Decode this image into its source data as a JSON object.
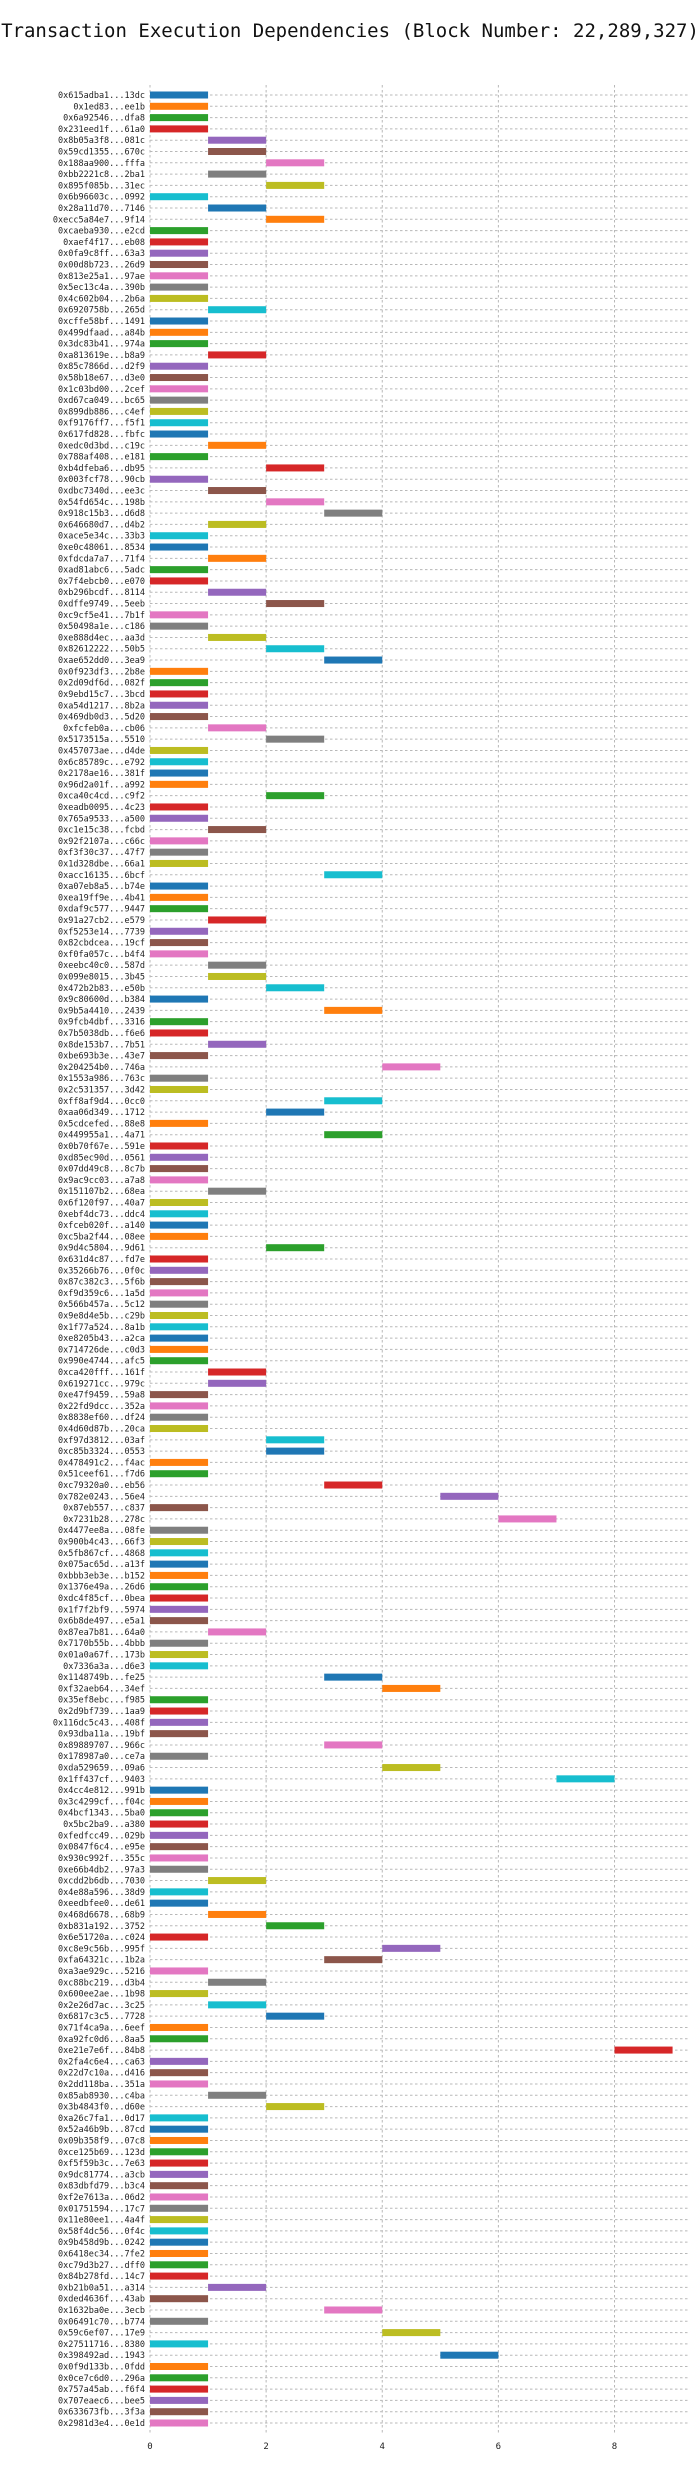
{
  "chart_data": {
    "type": "bar",
    "orientation": "horizontal-segments",
    "title": "Transaction Execution Dependencies (Block Number: 22,289,327)",
    "xlabel": "",
    "ylabel": "",
    "xlim": [
      0,
      9.3
    ],
    "xticks": [
      0,
      2,
      4,
      6,
      8
    ],
    "grid": true,
    "palette": [
      "#1f77b4",
      "#ff7f0e",
      "#2ca02c",
      "#d62728",
      "#9467bd",
      "#8c564b",
      "#e377c2",
      "#7f7f7f",
      "#bcbd22",
      "#17becf"
    ],
    "transactions": [
      [
        "0x615adba1...13dc",
        0
      ],
      [
        "0x1ed83...ee1b",
        0
      ],
      [
        "0x6a92546...dfa8",
        0
      ],
      [
        "0x231eed1f...61a0",
        0
      ],
      [
        "0x8b05a3f8...081c",
        1
      ],
      [
        "0x59cd1355...670c",
        1
      ],
      [
        "0x188aa900...fffa",
        2
      ],
      [
        "0xbb2221c8...2ba1",
        1
      ],
      [
        "0x895f085b...31ec",
        2
      ],
      [
        "0x6b96603c...0992",
        0
      ],
      [
        "0x28a11d70...7146",
        1
      ],
      [
        "0xecc5a84e7...9f14",
        2
      ],
      [
        "0xcaeba930...e2cd",
        0
      ],
      [
        "0xaef4f17...eb08",
        0
      ],
      [
        "0x0fa9c8ff...63a3",
        0
      ],
      [
        "0x00d8b723...26d9",
        0
      ],
      [
        "0x813e25a1...97ae",
        0
      ],
      [
        "0x5ec13c4a...390b",
        0
      ],
      [
        "0x4c602b04...2b6a",
        0
      ],
      [
        "0x6920758b...265d",
        1
      ],
      [
        "0xcffe58bf...1491",
        0
      ],
      [
        "0x499dfaad...a84b",
        0
      ],
      [
        "0x3dc83b41...974a",
        0
      ],
      [
        "0xa813619e...b8a9",
        1
      ],
      [
        "0x85c7866d...d2f9",
        0
      ],
      [
        "0x58b18e67...d3e0",
        0
      ],
      [
        "0x1c03bd00...2cef",
        0
      ],
      [
        "0xd67ca049...bc65",
        0
      ],
      [
        "0x899db886...c4ef",
        0
      ],
      [
        "0xf9176ff7...f5f1",
        0
      ],
      [
        "0x617fd828...fbfc",
        0
      ],
      [
        "0xedc0d3bd...c19c",
        1
      ],
      [
        "0x788af408...e181",
        0
      ],
      [
        "0xb4dfeba6...db95",
        2
      ],
      [
        "0x003fcf78...90cb",
        0
      ],
      [
        "0xdbc7340d...ee3c",
        1
      ],
      [
        "0x54fd654c...198b",
        2
      ],
      [
        "0x918c15b3...d6d8",
        3
      ],
      [
        "0x646680d7...d4b2",
        1
      ],
      [
        "0xace5e34c...33b3",
        0
      ],
      [
        "0xe0c48061...8534",
        0
      ],
      [
        "0xfdcda7a7...71f4",
        1
      ],
      [
        "0xad81abc6...5adc",
        0
      ],
      [
        "0x7f4ebcb0...e070",
        0
      ],
      [
        "0xb296bcdf...8114",
        1
      ],
      [
        "0xdffe9749...5eeb",
        2
      ],
      [
        "0xc9cf5e41...7b1f",
        0
      ],
      [
        "0x50498a1e...c186",
        0
      ],
      [
        "0xe888d4ec...aa3d",
        1
      ],
      [
        "0x82612222...50b5",
        2
      ],
      [
        "0xae652dd0...3ea9",
        3
      ],
      [
        "0x0f923df3...2b8e",
        0
      ],
      [
        "0x2d09df6d...082f",
        0
      ],
      [
        "0x9ebd15c7...3bcd",
        0
      ],
      [
        "0xa54d1217...8b2a",
        0
      ],
      [
        "0x469db0d3...5d20",
        0
      ],
      [
        "0xfcfeb0a...cb06",
        1
      ],
      [
        "0x5173515a...5510",
        2
      ],
      [
        "0x457073ae...d4de",
        0
      ],
      [
        "0x6c85789c...e792",
        0
      ],
      [
        "0x2178ae16...381f",
        0
      ],
      [
        "0x96d2a01f...a992",
        0
      ],
      [
        "0xca40c4cd...c9f2",
        2
      ],
      [
        "0xeadb0095...4c23",
        0
      ],
      [
        "0x765a9533...a500",
        0
      ],
      [
        "0xc1e15c38...fcbd",
        1
      ],
      [
        "0x92f2107a...c66c",
        0
      ],
      [
        "0xf3f30c37...47f7",
        0
      ],
      [
        "0x1d328dbe...66a1",
        0
      ],
      [
        "0xacc16135...6bcf",
        3
      ],
      [
        "0xa07eb8a5...b74e",
        0
      ],
      [
        "0xea19ff9e...4b41",
        0
      ],
      [
        "0xdaf9c577...9447",
        0
      ],
      [
        "0x91a27cb2...e579",
        1
      ],
      [
        "0xf5253e14...7739",
        0
      ],
      [
        "0x82cbdcea...19cf",
        0
      ],
      [
        "0xf0fa057c...b4f4",
        0
      ],
      [
        "0xeebc40c0...587d",
        1
      ],
      [
        "0x099e8015...3b45",
        1
      ],
      [
        "0x472b2b83...e50b",
        2
      ],
      [
        "0x9c80600d...b384",
        0
      ],
      [
        "0x9b5a4410...2439",
        3
      ],
      [
        "0x9fcb4dbf...3316",
        0
      ],
      [
        "0x7b5038db...f6e6",
        0
      ],
      [
        "0x8de153b7...7b51",
        1
      ],
      [
        "0xbe693b3e...43e7",
        0
      ],
      [
        "0x204254b0...746a",
        4
      ],
      [
        "0x1553a986...763c",
        0
      ],
      [
        "0x2c531357...3d42",
        0
      ],
      [
        "0xff8af9d4...0cc0",
        3
      ],
      [
        "0xaa06d349...1712",
        2
      ],
      [
        "0x5cdcefed...88e8",
        0
      ],
      [
        "0x449955a1...4a71",
        3
      ],
      [
        "0x0b70f67e...591e",
        0
      ],
      [
        "0xd85ec90d...0561",
        0
      ],
      [
        "0x07dd49c8...8c7b",
        0
      ],
      [
        "0x9ac9cc03...a7a8",
        0
      ],
      [
        "0x151107b2...68ea",
        1
      ],
      [
        "0x6f120f97...40a7",
        0
      ],
      [
        "0xebf4dc73...ddc4",
        0
      ],
      [
        "0xfceb020f...a140",
        0
      ],
      [
        "0xc5ba2f44...08ee",
        0
      ],
      [
        "0x9d4c5804...9d61",
        2
      ],
      [
        "0x631d4c87...fd7e",
        0
      ],
      [
        "0x35266b76...0f0c",
        0
      ],
      [
        "0x87c382c3...5f6b",
        0
      ],
      [
        "0xf9d359c6...1a5d",
        0
      ],
      [
        "0x566b457a...5c12",
        0
      ],
      [
        "0x9e8d4e5b...c29b",
        0
      ],
      [
        "0x1f77a524...8a1b",
        0
      ],
      [
        "0xe8205b43...a2ca",
        0
      ],
      [
        "0x714726de...c0d3",
        0
      ],
      [
        "0x990e4744...afc5",
        0
      ],
      [
        "0xca420fff...161f",
        1
      ],
      [
        "0x619271cc...979c",
        1
      ],
      [
        "0xe47f9459...59a8",
        0
      ],
      [
        "0x22fd9dcc...352a",
        0
      ],
      [
        "0x8838ef60...df24",
        0
      ],
      [
        "0x4d60d87b...20ca",
        0
      ],
      [
        "0xf97d3812...03af",
        2
      ],
      [
        "0xc85b3324...0553",
        2
      ],
      [
        "0x478491c2...f4ac",
        0
      ],
      [
        "0x51ceef61...f7d6",
        0
      ],
      [
        "0xc79320a0...eb56",
        3
      ],
      [
        "0x782e0243...56e4",
        5
      ],
      [
        "0x87eb557...c837",
        0
      ],
      [
        "0x7231b28...278c",
        6
      ],
      [
        "0x4477ee8a...08fe",
        0
      ],
      [
        "0x900b4c43...66f3",
        0
      ],
      [
        "0x5fb867cf...4868",
        0
      ],
      [
        "0x075ac65d...a13f",
        0
      ],
      [
        "0xbbb3eb3e...b152",
        0
      ],
      [
        "0x1376e49a...26d6",
        0
      ],
      [
        "0xdc4f85cf...0bea",
        0
      ],
      [
        "0x1f7f2bf9...5974",
        0
      ],
      [
        "0x6b8de497...e5a1",
        0
      ],
      [
        "0x87ea7b81...64a0",
        1
      ],
      [
        "0x7170b55b...4bbb",
        0
      ],
      [
        "0x01a0a67f...173b",
        0
      ],
      [
        "0x7336a3a...d6e3",
        0
      ],
      [
        "0x1148749b...fe25",
        3
      ],
      [
        "0xf32aeb64...34ef",
        4
      ],
      [
        "0x35ef8ebc...f985",
        0
      ],
      [
        "0x2d9bf739...1aa9",
        0
      ],
      [
        "0x116dc5c43...408f",
        0
      ],
      [
        "0x93dba11a...19bf",
        0
      ],
      [
        "0x89889707...966c",
        3
      ],
      [
        "0x178987a0...ce7a",
        0
      ],
      [
        "0xda529659...09a6",
        4
      ],
      [
        "0x1ff437cf...9403",
        7
      ],
      [
        "0x4cc4e812...991b",
        0
      ],
      [
        "0x3c4299cf...f04c",
        0
      ],
      [
        "0x4bcf1343...5ba0",
        0
      ],
      [
        "0x5bc2ba9...a380",
        0
      ],
      [
        "0xfedfcc49...029b",
        0
      ],
      [
        "0x0847f6c4...e95e",
        0
      ],
      [
        "0x930c992f...355c",
        0
      ],
      [
        "0xe66b4db2...97a3",
        0
      ],
      [
        "0xcdd2b6db...7030",
        1
      ],
      [
        "0x4e88a596...38d9",
        0
      ],
      [
        "0xeedbfee0...de61",
        0
      ],
      [
        "0x468d6678...68b9",
        1
      ],
      [
        "0xb831a192...3752",
        2
      ],
      [
        "0x6e51720a...c024",
        0
      ],
      [
        "0xc8e9c56b...995f",
        4
      ],
      [
        "0xfa64321c...1b2a",
        3
      ],
      [
        "0xa3ae929c...5216",
        0
      ],
      [
        "0xc88bc219...d3b4",
        1
      ],
      [
        "0x600ee2ae...1b98",
        0
      ],
      [
        "0x2e26d7ac...3c25",
        1
      ],
      [
        "0x6817c3c5...7728",
        2
      ],
      [
        "0x71f4ca9a...6eef",
        0
      ],
      [
        "0xa92fc0d6...8aa5",
        0
      ],
      [
        "0xe21e7e6f...84b8",
        8
      ],
      [
        "0x2fa4c6e4...ca63",
        0
      ],
      [
        "0x22d7c10a...d416",
        0
      ],
      [
        "0x2dd118ba...351a",
        0
      ],
      [
        "0x85ab8930...c4ba",
        1
      ],
      [
        "0x3b4843f0...d60e",
        2
      ],
      [
        "0xa26c7fa1...0d17",
        0
      ],
      [
        "0x52a46b9b...87cd",
        0
      ],
      [
        "0x09b358f9...07c8",
        0
      ],
      [
        "0xce125b69...123d",
        0
      ],
      [
        "0xf5f59b3c...7e63",
        0
      ],
      [
        "0x9dc81774...a3cb",
        0
      ],
      [
        "0x83dbfd79...b3c4",
        0
      ],
      [
        "0xf2e7613a...06d2",
        0
      ],
      [
        "0x01751594...17c7",
        0
      ],
      [
        "0x11e80ee1...4a4f",
        0
      ],
      [
        "0x58f4dc56...0f4c",
        0
      ],
      [
        "0x9b458d9b...0242",
        0
      ],
      [
        "0x6418ec34...7fe2",
        0
      ],
      [
        "0xc79d3b27...dff0",
        0
      ],
      [
        "0x84b278fd...14c7",
        0
      ],
      [
        "0xb21b0a51...a314",
        1
      ],
      [
        "0xded4636f...43ab",
        0
      ],
      [
        "0x1632ba0e...3ecb",
        3
      ],
      [
        "0x06491c70...b774",
        0
      ],
      [
        "0x59c6ef07...17e9",
        4
      ],
      [
        "0x27511716...8380",
        0
      ],
      [
        "0x398492ad...1943",
        5
      ],
      [
        "0x0f9d133b...0fdd",
        0
      ],
      [
        "0x0ce7c6d0...296a",
        0
      ],
      [
        "0x757a45ab...f6f4",
        0
      ],
      [
        "0x707eaec6...bee5",
        0
      ],
      [
        "0x633673fb...3f3a",
        0
      ],
      [
        "0x2981d3e4...0e1d",
        0
      ]
    ]
  }
}
